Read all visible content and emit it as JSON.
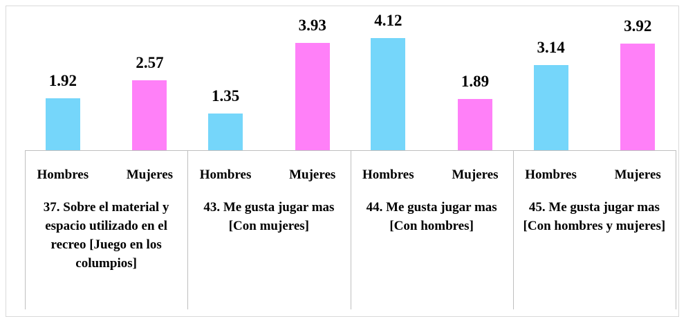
{
  "chart_data": {
    "type": "bar",
    "groups": [
      "37. Sobre el material y espacio utilizado en el recreo [Juego en los columpios]",
      "43. Me gusta jugar mas [Con mujeres]",
      "44. Me gusta jugar mas [Con hombres]",
      "45. Me gusta jugar mas [Con hombres y mujeres]"
    ],
    "categories": [
      "Hombres",
      "Mujeres",
      "Hombres",
      "Mujeres",
      "Hombres",
      "Mujeres",
      "Hombres",
      "Mujeres"
    ],
    "values": [
      1.92,
      2.57,
      1.35,
      3.93,
      4.12,
      1.89,
      3.14,
      3.92
    ],
    "colors": [
      "#75d6fa",
      "#ff80f8",
      "#75d6fa",
      "#ff80f8",
      "#75d6fa",
      "#ff80f8",
      "#75d6fa",
      "#ff80f8"
    ],
    "grid": false
  }
}
